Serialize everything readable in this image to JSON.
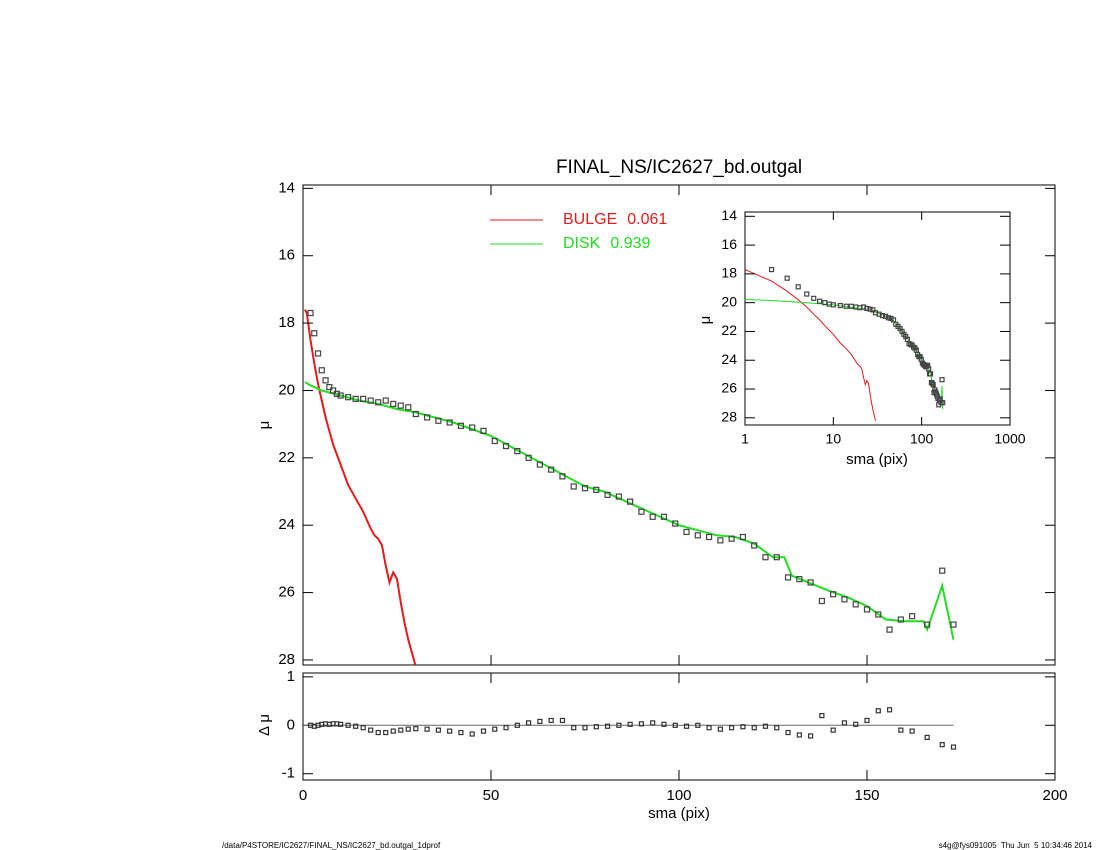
{
  "chart_data": [
    {
      "type": "line",
      "title": "FINAL_NS/IC2627_bd.outgal",
      "ylabel": "μ",
      "xlim": [
        0,
        200
      ],
      "ylim": [
        28.15,
        13.9
      ],
      "yticks": [
        14,
        16,
        18,
        20,
        22,
        24,
        26,
        28
      ],
      "points": {
        "color": "#444444",
        "x": [
          2,
          3,
          4,
          5,
          6,
          7,
          8,
          9,
          10,
          12,
          14,
          16,
          18,
          20,
          22,
          24,
          26,
          28,
          30,
          33,
          36,
          39,
          42,
          45,
          48,
          51,
          54,
          57,
          60,
          63,
          66,
          69,
          72,
          75,
          78,
          81,
          84,
          87,
          90,
          93,
          96,
          99,
          102,
          105,
          108,
          111,
          114,
          117,
          120,
          123,
          126,
          129,
          132,
          135,
          138,
          141,
          144,
          147,
          150,
          153,
          156,
          159,
          162,
          166,
          170,
          173
        ],
        "values": [
          17.7,
          18.3,
          18.9,
          19.4,
          19.7,
          19.9,
          20.0,
          20.1,
          20.15,
          20.2,
          20.25,
          20.25,
          20.3,
          20.35,
          20.3,
          20.4,
          20.45,
          20.5,
          20.7,
          20.8,
          20.9,
          20.95,
          21.05,
          21.1,
          21.2,
          21.5,
          21.65,
          21.8,
          22.0,
          22.2,
          22.35,
          22.55,
          22.85,
          22.9,
          22.95,
          23.1,
          23.15,
          23.3,
          23.6,
          23.75,
          23.75,
          23.95,
          24.2,
          24.3,
          24.35,
          24.45,
          24.4,
          24.35,
          24.6,
          24.95,
          24.95,
          25.55,
          25.6,
          25.7,
          26.25,
          26.05,
          26.2,
          26.35,
          26.5,
          26.65,
          27.1,
          26.8,
          26.7,
          26.95,
          25.35,
          26.95
        ]
      },
      "series": [
        {
          "name": "BULGE",
          "fraction": 0.061,
          "color": "#e41a1c",
          "x": [
            0.5,
            1,
            2,
            3,
            4,
            5,
            6,
            7,
            8,
            10,
            12,
            14,
            16,
            18,
            19,
            20,
            21,
            22,
            23,
            24,
            25,
            26,
            27,
            28,
            30
          ],
          "values": [
            17.6,
            17.7,
            18.5,
            19.2,
            19.8,
            20.3,
            20.8,
            21.2,
            21.6,
            22.2,
            22.8,
            23.2,
            23.6,
            24.1,
            24.3,
            24.4,
            24.6,
            25.2,
            25.7,
            25.4,
            25.6,
            26.3,
            26.9,
            27.4,
            28.2
          ]
        },
        {
          "name": "DISK",
          "fraction": 0.939,
          "color": "#22dd22",
          "x": [
            0.5,
            1,
            2,
            5,
            10,
            15,
            20,
            25,
            30,
            40,
            50,
            60,
            70,
            75,
            80,
            90,
            100,
            110,
            115,
            120,
            125,
            128,
            130,
            140,
            145,
            150,
            155,
            160,
            165,
            166,
            170,
            173
          ],
          "values": [
            19.75,
            19.78,
            19.85,
            20.0,
            20.15,
            20.3,
            20.4,
            20.55,
            20.65,
            20.95,
            21.35,
            21.95,
            22.55,
            22.85,
            23.0,
            23.5,
            24.0,
            24.3,
            24.35,
            24.55,
            24.95,
            24.95,
            25.5,
            25.95,
            26.15,
            26.4,
            26.8,
            26.85,
            26.85,
            27.1,
            25.8,
            27.4
          ]
        }
      ]
    },
    {
      "type": "inset",
      "xlabel": "sma (pix)",
      "ylabel": "μ",
      "xscale": "log",
      "xlim": [
        1,
        1000
      ],
      "xticks": [
        1,
        10,
        100,
        1000
      ],
      "ylim": [
        28.5,
        13.7
      ],
      "yticks": [
        14,
        16,
        18,
        20,
        22,
        24,
        26,
        28
      ]
    },
    {
      "type": "residual",
      "xlabel": "sma (pix)",
      "ylabel": "Δ μ",
      "xlim": [
        0,
        200
      ],
      "xticks": [
        0,
        50,
        100,
        150,
        200
      ],
      "ylim": [
        -1.13,
        1.08
      ],
      "yticks": [
        -1,
        0,
        1
      ],
      "values": [
        0,
        -0.02,
        0,
        0.02,
        0.03,
        0.02,
        0.03,
        0.03,
        0.02,
        0,
        -0.02,
        -0.05,
        -0.1,
        -0.15,
        -0.15,
        -0.12,
        -0.1,
        -0.08,
        -0.07,
        -0.08,
        -0.1,
        -0.12,
        -0.15,
        -0.18,
        -0.12,
        -0.08,
        -0.05,
        0,
        0.05,
        0.08,
        0.1,
        0.1,
        -0.05,
        -0.05,
        -0.03,
        -0.02,
        0,
        0.02,
        0.03,
        0.05,
        0.02,
        0,
        -0.02,
        0,
        -0.05,
        -0.08,
        -0.05,
        -0.03,
        -0.05,
        -0.02,
        -0.05,
        -0.15,
        -0.2,
        -0.22,
        0.2,
        -0.1,
        0.05,
        0.02,
        0.1,
        0.3,
        0.32,
        -0.1,
        -0.12,
        -0.25,
        -0.4,
        -0.45
      ]
    }
  ],
  "footer": {
    "left": "/data/P4STORE/IC2627/FINAL_NS/IC2627_bd.outgal_1dprof",
    "right": "s4g@fys091005  Thu Jun  5 10:34:46 2014"
  }
}
